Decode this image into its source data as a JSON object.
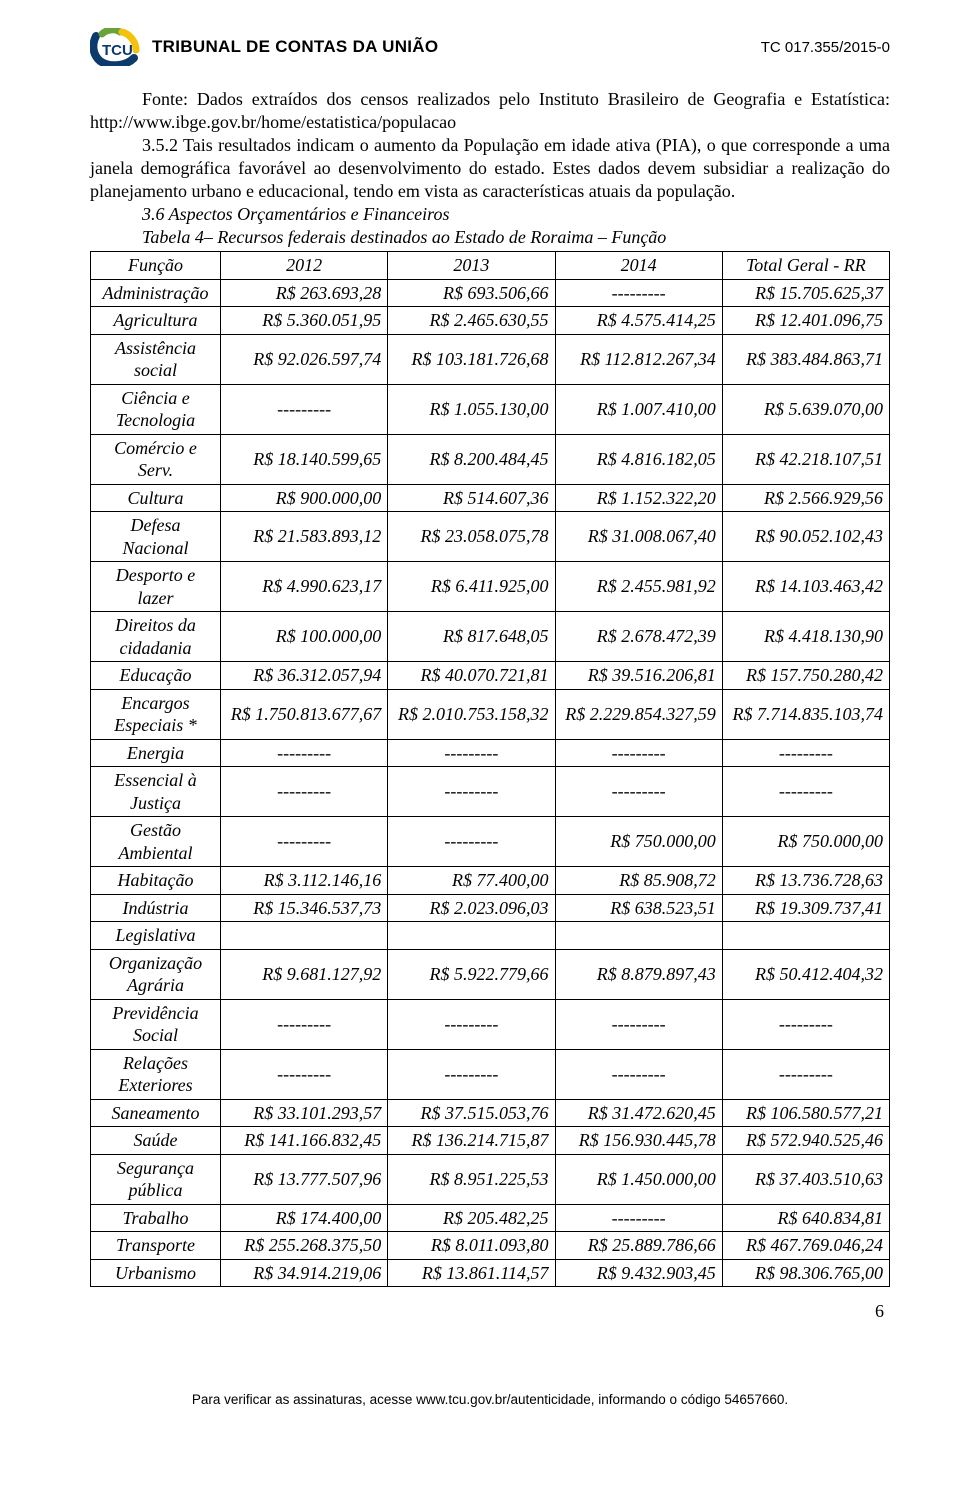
{
  "header": {
    "title": "TRIBUNAL DE CONTAS DA UNIÃO",
    "case_code": "TC 017.355/2015-0"
  },
  "paragraphs": {
    "source": "Fonte: Dados extraídos dos censos realizados pelo Instituto Brasileiro de Geografia e Estatística: http://www.ibge.gov.br/home/estatistica/populacao",
    "p352": "3.5.2 Tais resultados indicam o aumento da População em idade ativa (PIA), o que corresponde a uma janela demográfica favorável ao desenvolvimento do estado. Estes dados devem subsidiar a realização do planejamento urbano e educacional, tendo em vista as características atuais da população.",
    "section": "3.6 Aspectos Orçamentários e Financeiros",
    "table_caption": "Tabela 4– Recursos federais destinados ao Estado de Roraima – Função"
  },
  "table": {
    "headers": [
      "Função",
      "2012",
      "2013",
      "2014",
      "Total Geral - RR"
    ],
    "dash": "---------",
    "rows": [
      {
        "f": "Administração",
        "c": [
          "R$ 263.693,28",
          "R$ 693.506,66",
          "---------",
          "R$ 15.705.625,37"
        ]
      },
      {
        "f": "Agricultura",
        "c": [
          "R$ 5.360.051,95",
          "R$ 2.465.630,55",
          "R$ 4.575.414,25",
          "R$ 12.401.096,75"
        ]
      },
      {
        "f": "Assistência social",
        "c": [
          "R$ 92.026.597,74",
          "R$ 103.181.726,68",
          "R$ 112.812.267,34",
          "R$ 383.484.863,71"
        ]
      },
      {
        "f": "Ciência e Tecnologia",
        "c": [
          "---------",
          "R$ 1.055.130,00",
          "R$ 1.007.410,00",
          "R$ 5.639.070,00"
        ]
      },
      {
        "f": "Comércio e Serv.",
        "c": [
          "R$ 18.140.599,65",
          "R$ 8.200.484,45",
          "R$ 4.816.182,05",
          "R$ 42.218.107,51"
        ]
      },
      {
        "f": "Cultura",
        "c": [
          "R$ 900.000,00",
          "R$ 514.607,36",
          "R$ 1.152.322,20",
          "R$ 2.566.929,56"
        ]
      },
      {
        "f": "Defesa Nacional",
        "c": [
          "R$ 21.583.893,12",
          "R$ 23.058.075,78",
          "R$ 31.008.067,40",
          "R$ 90.052.102,43"
        ]
      },
      {
        "f": "Desporto e lazer",
        "c": [
          "R$ 4.990.623,17",
          "R$ 6.411.925,00",
          "R$ 2.455.981,92",
          "R$ 14.103.463,42"
        ]
      },
      {
        "f": "Direitos da cidadania",
        "c": [
          "R$ 100.000,00",
          "R$ 817.648,05",
          "R$ 2.678.472,39",
          "R$ 4.418.130,90"
        ]
      },
      {
        "f": "Educação",
        "c": [
          "R$ 36.312.057,94",
          "R$ 40.070.721,81",
          "R$ 39.516.206,81",
          "R$ 157.750.280,42"
        ]
      },
      {
        "f": "Encargos Especiais *",
        "c": [
          "R$ 1.750.813.677,67",
          "R$ 2.010.753.158,32",
          "R$ 2.229.854.327,59",
          "R$ 7.714.835.103,74"
        ]
      },
      {
        "f": "Energia",
        "c": [
          "---------",
          "---------",
          "---------",
          "---------"
        ]
      },
      {
        "f": "Essencial à Justiça",
        "c": [
          "---------",
          "---------",
          "---------",
          "---------"
        ]
      },
      {
        "f": "Gestão Ambiental",
        "c": [
          "---------",
          "---------",
          "R$ 750.000,00",
          "R$ 750.000,00"
        ]
      },
      {
        "f": "Habitação",
        "c": [
          "R$ 3.112.146,16",
          "R$ 77.400,00",
          "R$ 85.908,72",
          "R$ 13.736.728,63"
        ]
      },
      {
        "f": "Indústria",
        "c": [
          "R$ 15.346.537,73",
          "R$ 2.023.096,03",
          "R$ 638.523,51",
          "R$ 19.309.737,41"
        ]
      },
      {
        "f": "Legislativa",
        "c": [
          "",
          "",
          "",
          ""
        ]
      },
      {
        "f": "Organização Agrária",
        "c": [
          "R$ 9.681.127,92",
          "R$ 5.922.779,66",
          "R$ 8.879.897,43",
          "R$ 50.412.404,32"
        ]
      },
      {
        "f": "Previdência Social",
        "c": [
          "---------",
          "---------",
          "---------",
          "---------"
        ]
      },
      {
        "f": "Relações Exteriores",
        "c": [
          "---------",
          "---------",
          "---------",
          "---------"
        ]
      },
      {
        "f": "Saneamento",
        "c": [
          "R$ 33.101.293,57",
          "R$ 37.515.053,76",
          "R$ 31.472.620,45",
          "R$ 106.580.577,21"
        ]
      },
      {
        "f": "Saúde",
        "c": [
          "R$ 141.166.832,45",
          "R$ 136.214.715,87",
          "R$ 156.930.445,78",
          "R$ 572.940.525,46"
        ]
      },
      {
        "f": "Segurança pública",
        "c": [
          "R$ 13.777.507,96",
          "R$ 8.951.225,53",
          "R$ 1.450.000,00",
          "R$ 37.403.510,63"
        ]
      },
      {
        "f": "Trabalho",
        "c": [
          "R$ 174.400,00",
          "R$ 205.482,25",
          "---------",
          "R$ 640.834,81"
        ]
      },
      {
        "f": "Transporte",
        "c": [
          "R$ 255.268.375,50",
          "R$ 8.011.093,80",
          "R$ 25.889.786,66",
          "R$ 467.769.046,24"
        ]
      },
      {
        "f": "Urbanismo",
        "c": [
          "R$ 34.914.219,06",
          "R$ 13.861.114,57",
          "R$ 9.432.903,45",
          "R$ 98.306.765,00"
        ]
      }
    ]
  },
  "page_number": "6",
  "footer": "Para verificar as assinaturas, acesse www.tcu.gov.br/autenticidade, informando o código 54657660.",
  "colors": {
    "logo_blue": "#0b3a6b",
    "logo_green": "#6aa33a",
    "logo_yellow": "#f4c20d",
    "text": "#000000",
    "bg": "#ffffff"
  }
}
